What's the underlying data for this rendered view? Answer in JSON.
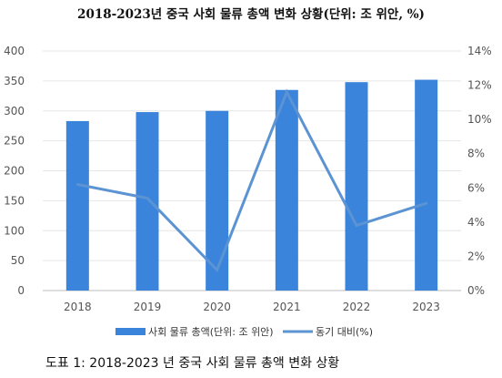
{
  "title": "2018-2023년 중국 사회 물류 총액 변화 상황(단위: 조 위안, %)",
  "caption": "도표 1: 2018-2023 년 중국 사회 물류 총액 변화 상황",
  "colors": {
    "bar": "#3a84dc",
    "line": "#5b93d3"
  },
  "chart_data": {
    "type": "bar",
    "categories": [
      "2018",
      "2019",
      "2020",
      "2021",
      "2022",
      "2023"
    ],
    "ylim": [
      0,
      400
    ],
    "y_ticks": [
      "0",
      "50",
      "100",
      "150",
      "200",
      "250",
      "300",
      "350",
      "400"
    ],
    "y2lim": [
      0,
      14
    ],
    "y2_ticks": [
      "0%",
      "2%",
      "4%",
      "6%",
      "8%",
      "10%",
      "12%",
      "14%"
    ],
    "series": [
      {
        "name": "사회 물류 총액(단위: 조 위안)",
        "type": "bar",
        "axis": "left",
        "values": [
          283,
          298,
          300,
          335,
          348,
          352
        ]
      },
      {
        "name": "동기 대비(%)",
        "type": "line",
        "axis": "right",
        "values": [
          6.2,
          5.4,
          1.2,
          11.6,
          3.8,
          5.1
        ]
      }
    ],
    "legend": "bottom"
  }
}
